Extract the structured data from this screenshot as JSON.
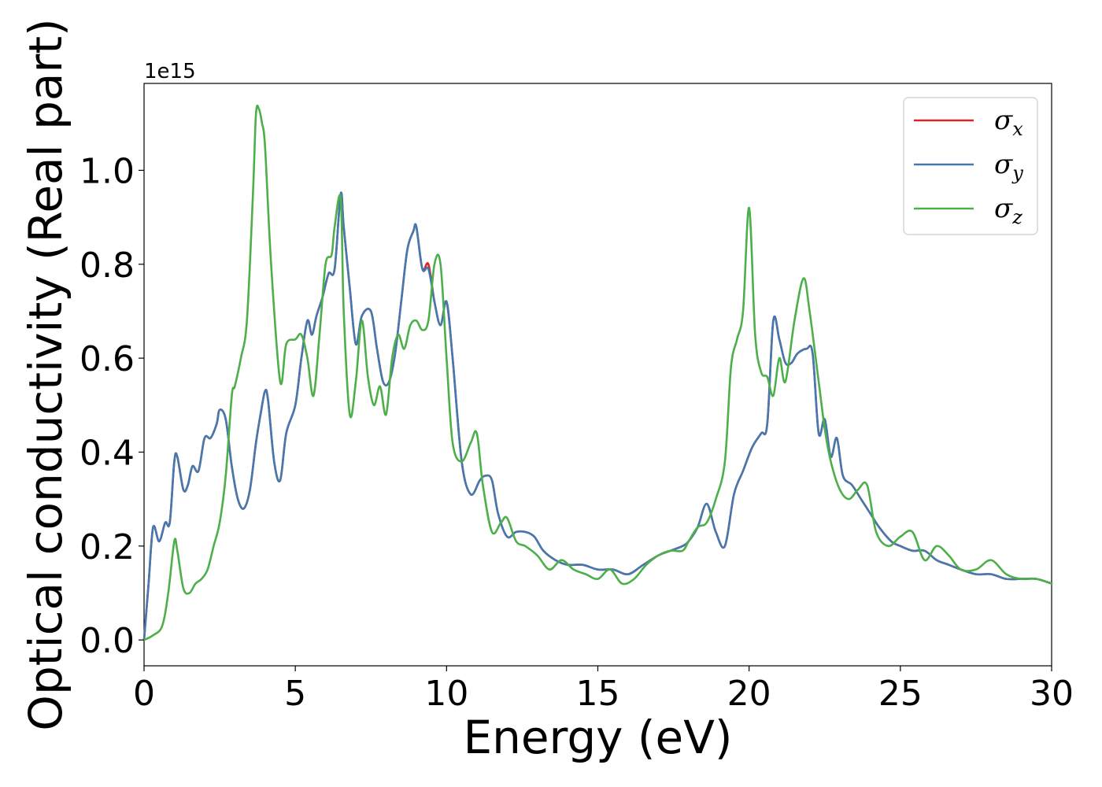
{
  "chart_data": {
    "type": "line",
    "title": "",
    "xlabel": "Energy (eV)",
    "ylabel": "Optical conductivity (Real part)",
    "y_offset_label": "1e15",
    "xlim": [
      0,
      30
    ],
    "ylim": [
      -0.055,
      1.185
    ],
    "x_ticks": [
      0,
      5,
      10,
      15,
      20,
      25,
      30
    ],
    "x_tick_labels": [
      "0",
      "5",
      "10",
      "15",
      "20",
      "25",
      "30"
    ],
    "y_ticks": [
      0.0,
      0.2,
      0.4,
      0.6,
      0.8,
      1.0
    ],
    "y_tick_labels": [
      "0.0",
      "0.2",
      "0.4",
      "0.6",
      "0.8",
      "1.0"
    ],
    "grid": false,
    "legend_position": "top-right",
    "series": [
      {
        "name": "σx",
        "legend_symbol": "σ",
        "legend_subscript": "x",
        "color": "#d62728",
        "x": [
          0,
          0.15,
          0.3,
          0.5,
          0.7,
          0.85,
          1.0,
          1.1,
          1.3,
          1.45,
          1.6,
          1.8,
          2.0,
          2.2,
          2.4,
          2.5,
          2.7,
          2.9,
          3.1,
          3.3,
          3.5,
          3.7,
          3.85,
          4.0,
          4.1,
          4.3,
          4.5,
          4.7,
          5.0,
          5.2,
          5.4,
          5.55,
          5.7,
          5.9,
          6.1,
          6.3,
          6.5,
          6.6,
          6.8,
          7.0,
          7.2,
          7.5,
          7.7,
          7.9,
          8.1,
          8.3,
          8.5,
          8.7,
          8.9,
          9.0,
          9.2,
          9.4,
          9.6,
          9.8,
          10.0,
          10.2,
          10.5,
          10.8,
          11.1,
          11.3,
          11.5,
          11.7,
          12.0,
          12.3,
          12.6,
          12.9,
          13.2,
          13.6,
          14.0,
          14.5,
          15.0,
          15.5,
          16.0,
          16.5,
          17.0,
          17.4,
          17.8,
          18.0,
          18.3,
          18.6,
          18.9,
          19.2,
          19.5,
          19.8,
          20.1,
          20.4,
          20.6,
          20.8,
          21.0,
          21.2,
          21.4,
          21.6,
          21.9,
          22.1,
          22.3,
          22.5,
          22.7,
          22.9,
          23.1,
          23.4,
          23.7,
          24.0,
          24.3,
          24.7,
          25.0,
          25.4,
          25.8,
          26.2,
          26.6,
          27.0,
          27.5,
          28.0,
          28.5,
          29.0,
          29.5,
          30.0
        ],
        "y": [
          0.0,
          0.12,
          0.24,
          0.21,
          0.25,
          0.25,
          0.38,
          0.39,
          0.32,
          0.33,
          0.37,
          0.36,
          0.43,
          0.43,
          0.46,
          0.49,
          0.47,
          0.37,
          0.3,
          0.28,
          0.32,
          0.42,
          0.48,
          0.53,
          0.51,
          0.38,
          0.34,
          0.44,
          0.5,
          0.6,
          0.68,
          0.65,
          0.69,
          0.73,
          0.78,
          0.79,
          0.95,
          0.88,
          0.75,
          0.63,
          0.69,
          0.7,
          0.62,
          0.55,
          0.55,
          0.61,
          0.72,
          0.83,
          0.87,
          0.88,
          0.79,
          0.8,
          0.72,
          0.67,
          0.72,
          0.6,
          0.38,
          0.31,
          0.34,
          0.35,
          0.34,
          0.27,
          0.22,
          0.23,
          0.23,
          0.22,
          0.19,
          0.17,
          0.16,
          0.16,
          0.15,
          0.15,
          0.14,
          0.16,
          0.18,
          0.19,
          0.2,
          0.21,
          0.24,
          0.29,
          0.23,
          0.2,
          0.31,
          0.36,
          0.41,
          0.44,
          0.46,
          0.68,
          0.64,
          0.59,
          0.59,
          0.61,
          0.62,
          0.61,
          0.44,
          0.47,
          0.39,
          0.43,
          0.35,
          0.33,
          0.3,
          0.27,
          0.24,
          0.21,
          0.2,
          0.19,
          0.19,
          0.17,
          0.16,
          0.15,
          0.14,
          0.14,
          0.13,
          0.13,
          0.13,
          0.12
        ]
      },
      {
        "name": "σy",
        "legend_symbol": "σ",
        "legend_subscript": "y",
        "color": "#4479b0",
        "x": [
          0,
          0.15,
          0.3,
          0.5,
          0.7,
          0.85,
          1.0,
          1.1,
          1.3,
          1.45,
          1.6,
          1.8,
          2.0,
          2.2,
          2.4,
          2.5,
          2.7,
          2.9,
          3.1,
          3.3,
          3.5,
          3.7,
          3.85,
          4.0,
          4.1,
          4.3,
          4.5,
          4.7,
          5.0,
          5.2,
          5.4,
          5.55,
          5.7,
          5.9,
          6.1,
          6.3,
          6.5,
          6.6,
          6.8,
          7.0,
          7.2,
          7.5,
          7.7,
          7.9,
          8.1,
          8.3,
          8.5,
          8.7,
          8.9,
          9.0,
          9.2,
          9.4,
          9.6,
          9.8,
          10.0,
          10.2,
          10.5,
          10.8,
          11.1,
          11.3,
          11.5,
          11.7,
          12.0,
          12.3,
          12.6,
          12.9,
          13.2,
          13.6,
          14.0,
          14.5,
          15.0,
          15.5,
          16.0,
          16.5,
          17.0,
          17.4,
          17.8,
          18.0,
          18.3,
          18.6,
          18.9,
          19.2,
          19.5,
          19.8,
          20.1,
          20.4,
          20.6,
          20.8,
          21.0,
          21.2,
          21.4,
          21.6,
          21.9,
          22.1,
          22.3,
          22.5,
          22.7,
          22.9,
          23.1,
          23.4,
          23.7,
          24.0,
          24.3,
          24.7,
          25.0,
          25.4,
          25.8,
          26.2,
          26.6,
          27.0,
          27.5,
          28.0,
          28.5,
          29.0,
          29.5,
          30.0
        ],
        "y": [
          0.0,
          0.12,
          0.24,
          0.21,
          0.25,
          0.25,
          0.38,
          0.39,
          0.32,
          0.33,
          0.37,
          0.36,
          0.43,
          0.43,
          0.46,
          0.49,
          0.47,
          0.37,
          0.3,
          0.28,
          0.32,
          0.42,
          0.48,
          0.53,
          0.51,
          0.38,
          0.34,
          0.44,
          0.5,
          0.6,
          0.68,
          0.65,
          0.69,
          0.73,
          0.78,
          0.79,
          0.95,
          0.88,
          0.75,
          0.63,
          0.69,
          0.7,
          0.62,
          0.55,
          0.55,
          0.61,
          0.72,
          0.83,
          0.87,
          0.88,
          0.79,
          0.79,
          0.72,
          0.67,
          0.72,
          0.6,
          0.38,
          0.31,
          0.34,
          0.35,
          0.34,
          0.27,
          0.22,
          0.23,
          0.23,
          0.22,
          0.19,
          0.17,
          0.16,
          0.16,
          0.15,
          0.15,
          0.14,
          0.16,
          0.18,
          0.19,
          0.2,
          0.21,
          0.24,
          0.29,
          0.23,
          0.2,
          0.31,
          0.36,
          0.41,
          0.44,
          0.46,
          0.68,
          0.64,
          0.59,
          0.59,
          0.61,
          0.62,
          0.61,
          0.44,
          0.47,
          0.39,
          0.43,
          0.35,
          0.33,
          0.3,
          0.27,
          0.24,
          0.21,
          0.2,
          0.19,
          0.19,
          0.17,
          0.16,
          0.15,
          0.14,
          0.14,
          0.13,
          0.13,
          0.13,
          0.12
        ]
      },
      {
        "name": "σz",
        "legend_symbol": "σ",
        "legend_subscript": "z",
        "color": "#4daf4a",
        "x": [
          0,
          0.3,
          0.6,
          0.8,
          1.0,
          1.1,
          1.3,
          1.5,
          1.7,
          1.9,
          2.1,
          2.3,
          2.5,
          2.7,
          2.9,
          3.0,
          3.2,
          3.4,
          3.6,
          3.7,
          3.8,
          3.9,
          4.0,
          4.2,
          4.5,
          4.7,
          5.0,
          5.2,
          5.4,
          5.6,
          5.8,
          6.0,
          6.2,
          6.3,
          6.5,
          6.6,
          6.8,
          7.0,
          7.2,
          7.4,
          7.6,
          7.8,
          8.0,
          8.2,
          8.4,
          8.6,
          8.8,
          9.0,
          9.2,
          9.4,
          9.6,
          9.8,
          10.0,
          10.2,
          10.5,
          10.8,
          11.0,
          11.2,
          11.5,
          11.8,
          12.0,
          12.3,
          12.6,
          13.0,
          13.4,
          13.8,
          14.2,
          14.6,
          15.0,
          15.4,
          15.8,
          16.2,
          16.6,
          17.0,
          17.4,
          17.8,
          18.0,
          18.3,
          18.6,
          18.9,
          19.2,
          19.4,
          19.6,
          19.8,
          20.0,
          20.2,
          20.4,
          20.6,
          20.8,
          21.0,
          21.2,
          21.5,
          21.8,
          22.0,
          22.3,
          22.5,
          22.7,
          23.0,
          23.3,
          23.6,
          23.9,
          24.2,
          24.6,
          25.0,
          25.4,
          25.8,
          26.2,
          26.6,
          27.0,
          27.5,
          28.0,
          28.5,
          29.0,
          29.5,
          30.0
        ],
        "y": [
          0.0,
          0.01,
          0.03,
          0.1,
          0.21,
          0.19,
          0.11,
          0.1,
          0.12,
          0.13,
          0.15,
          0.2,
          0.25,
          0.35,
          0.52,
          0.54,
          0.6,
          0.68,
          0.95,
          1.12,
          1.13,
          1.1,
          1.05,
          0.8,
          0.55,
          0.63,
          0.64,
          0.65,
          0.6,
          0.52,
          0.65,
          0.8,
          0.82,
          0.88,
          0.94,
          0.7,
          0.48,
          0.55,
          0.68,
          0.56,
          0.5,
          0.54,
          0.48,
          0.6,
          0.65,
          0.62,
          0.67,
          0.68,
          0.66,
          0.68,
          0.8,
          0.8,
          0.6,
          0.42,
          0.38,
          0.42,
          0.44,
          0.33,
          0.23,
          0.25,
          0.26,
          0.21,
          0.2,
          0.18,
          0.15,
          0.17,
          0.15,
          0.14,
          0.13,
          0.15,
          0.12,
          0.13,
          0.16,
          0.18,
          0.19,
          0.19,
          0.21,
          0.24,
          0.25,
          0.3,
          0.38,
          0.58,
          0.64,
          0.7,
          0.92,
          0.65,
          0.57,
          0.56,
          0.52,
          0.6,
          0.55,
          0.68,
          0.77,
          0.7,
          0.55,
          0.45,
          0.38,
          0.32,
          0.3,
          0.32,
          0.33,
          0.23,
          0.2,
          0.22,
          0.23,
          0.17,
          0.2,
          0.18,
          0.15,
          0.15,
          0.17,
          0.14,
          0.13,
          0.13,
          0.12
        ]
      }
    ]
  }
}
